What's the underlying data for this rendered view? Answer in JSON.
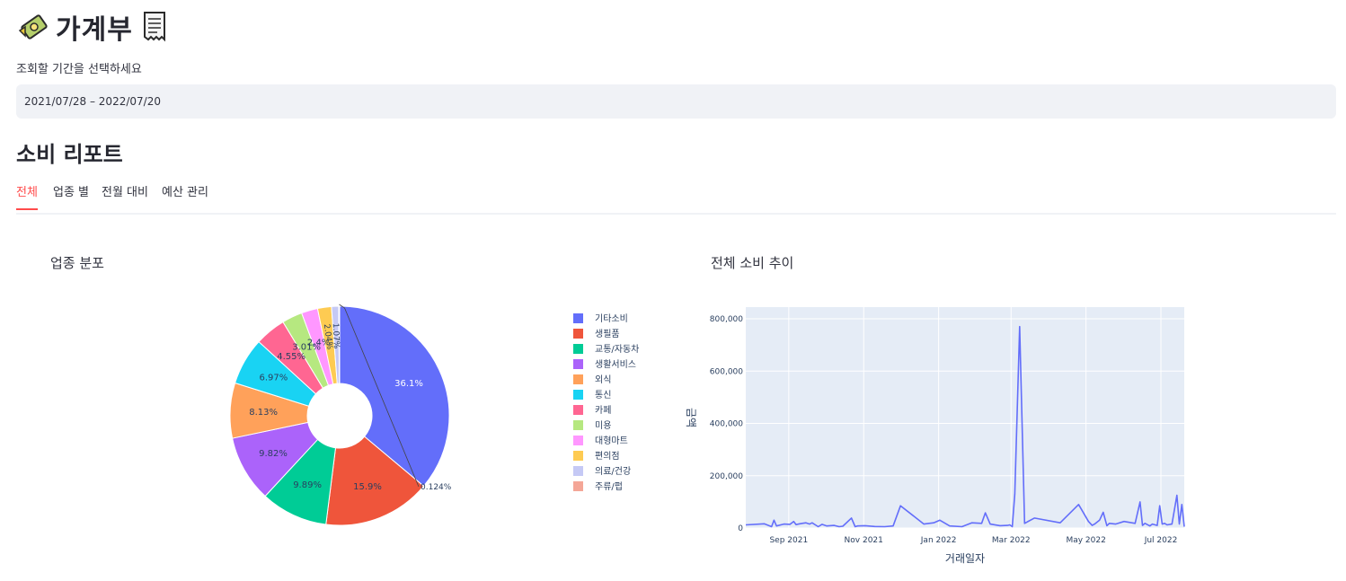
{
  "app": {
    "title": "가계부"
  },
  "date_filter": {
    "label": "조회할 기간을 선택하세요",
    "value": "2021/07/28 – 2022/07/20"
  },
  "report": {
    "title": "소비 리포트"
  },
  "tabs": [
    {
      "label": "전체",
      "active": true
    },
    {
      "label": "업종 별",
      "active": false
    },
    {
      "label": "전월 대비",
      "active": false
    },
    {
      "label": "예산 관리",
      "active": false
    }
  ],
  "colors": {
    "accent": "#ff4b4b",
    "line": "#636efa",
    "plot_bg": "#e5ecf6"
  },
  "chart_data": [
    {
      "type": "pie",
      "title": "업종 분포",
      "hole": true,
      "categories": [
        "기타소비",
        "생필품",
        "교통/자동차",
        "생활서비스",
        "외식",
        "통신",
        "카페",
        "미용",
        "대형마트",
        "편의점",
        "의료/건강",
        "주류/펍"
      ],
      "values": [
        36.1,
        15.9,
        9.89,
        9.82,
        8.13,
        6.97,
        4.55,
        3.01,
        2.4,
        2.04,
        1.07,
        0.124
      ],
      "slice_labels": [
        "36.1%",
        "15.9%",
        "9.89%",
        "9.82%",
        "8.13%",
        "6.97%",
        "4.55%",
        "3.01%",
        "2.4%",
        "2.04%",
        "1.07%",
        "0.124%"
      ],
      "colors": [
        "#636efa",
        "#ef553b",
        "#00cc96",
        "#ab63fa",
        "#ffa15a",
        "#19d3f3",
        "#ff6692",
        "#b6e880",
        "#ff97ff",
        "#fecb52",
        "#c5c9f5",
        "#f4a697"
      ],
      "legend_placement": "right"
    },
    {
      "type": "line",
      "title": "전체 소비 추이",
      "xlabel": "거래일자",
      "ylabel": "금액",
      "xlim": [
        "2021-07-28",
        "2022-07-20"
      ],
      "ylim": [
        0,
        800000
      ],
      "y_ticks": [
        0,
        200000,
        400000,
        600000,
        800000
      ],
      "y_tick_labels": [
        "0",
        "200,000",
        "400,000",
        "600,000",
        "800,000"
      ],
      "x_ticks": [
        "2021-09-01",
        "2021-11-01",
        "2022-01-01",
        "2022-03-01",
        "2022-05-01",
        "2022-07-01"
      ],
      "x_tick_labels": [
        "Sep 2021",
        "Nov 2021",
        "Jan 2022",
        "Mar 2022",
        "May 2022",
        "Jul 2022"
      ],
      "grid": true,
      "series": [
        {
          "x": [
            "2021-07-28",
            "2021-08-12",
            "2021-08-18",
            "2021-08-20",
            "2021-08-22",
            "2021-08-28",
            "2021-09-02",
            "2021-09-05",
            "2021-09-07",
            "2021-09-10",
            "2021-09-12",
            "2021-09-15",
            "2021-09-18",
            "2021-09-20",
            "2021-09-25",
            "2021-09-28",
            "2021-10-02",
            "2021-10-08",
            "2021-10-12",
            "2021-10-15",
            "2021-10-22",
            "2021-10-25",
            "2021-10-27",
            "2021-11-02",
            "2021-11-10",
            "2021-11-18",
            "2021-11-25",
            "2021-12-01",
            "2021-12-20",
            "2021-12-28",
            "2022-01-02",
            "2022-01-10",
            "2022-01-20",
            "2022-01-28",
            "2022-02-05",
            "2022-02-08",
            "2022-02-12",
            "2022-02-20",
            "2022-02-26",
            "2022-02-28",
            "2022-03-02",
            "2022-03-04",
            "2022-03-08",
            "2022-03-12",
            "2022-03-20",
            "2022-04-10",
            "2022-04-25",
            "2022-05-03",
            "2022-05-06",
            "2022-05-08",
            "2022-05-12",
            "2022-05-15",
            "2022-05-18",
            "2022-05-20",
            "2022-05-25",
            "2022-06-01",
            "2022-06-10",
            "2022-06-14",
            "2022-06-16",
            "2022-06-18",
            "2022-06-22",
            "2022-06-24",
            "2022-06-28",
            "2022-06-30",
            "2022-07-02",
            "2022-07-04",
            "2022-07-06",
            "2022-07-10",
            "2022-07-14",
            "2022-07-16",
            "2022-07-18",
            "2022-07-20"
          ],
          "y": [
            12000,
            16000,
            5000,
            30000,
            8000,
            15000,
            14000,
            25000,
            13000,
            16000,
            18000,
            20000,
            15000,
            20000,
            5000,
            14000,
            8000,
            10000,
            5000,
            7000,
            38000,
            5000,
            8000,
            9000,
            6000,
            5000,
            8000,
            85000,
            15000,
            20000,
            30000,
            8000,
            5000,
            20000,
            18000,
            58000,
            15000,
            9000,
            10000,
            12000,
            5000,
            130000,
            770000,
            18000,
            38000,
            20000,
            90000,
            25000,
            10000,
            15000,
            30000,
            60000,
            9000,
            18000,
            15000,
            25000,
            18000,
            100000,
            10000,
            18000,
            8000,
            15000,
            10000,
            85000,
            15000,
            18000,
            12000,
            15000,
            125000,
            15000,
            90000,
            5000
          ]
        }
      ]
    }
  ]
}
